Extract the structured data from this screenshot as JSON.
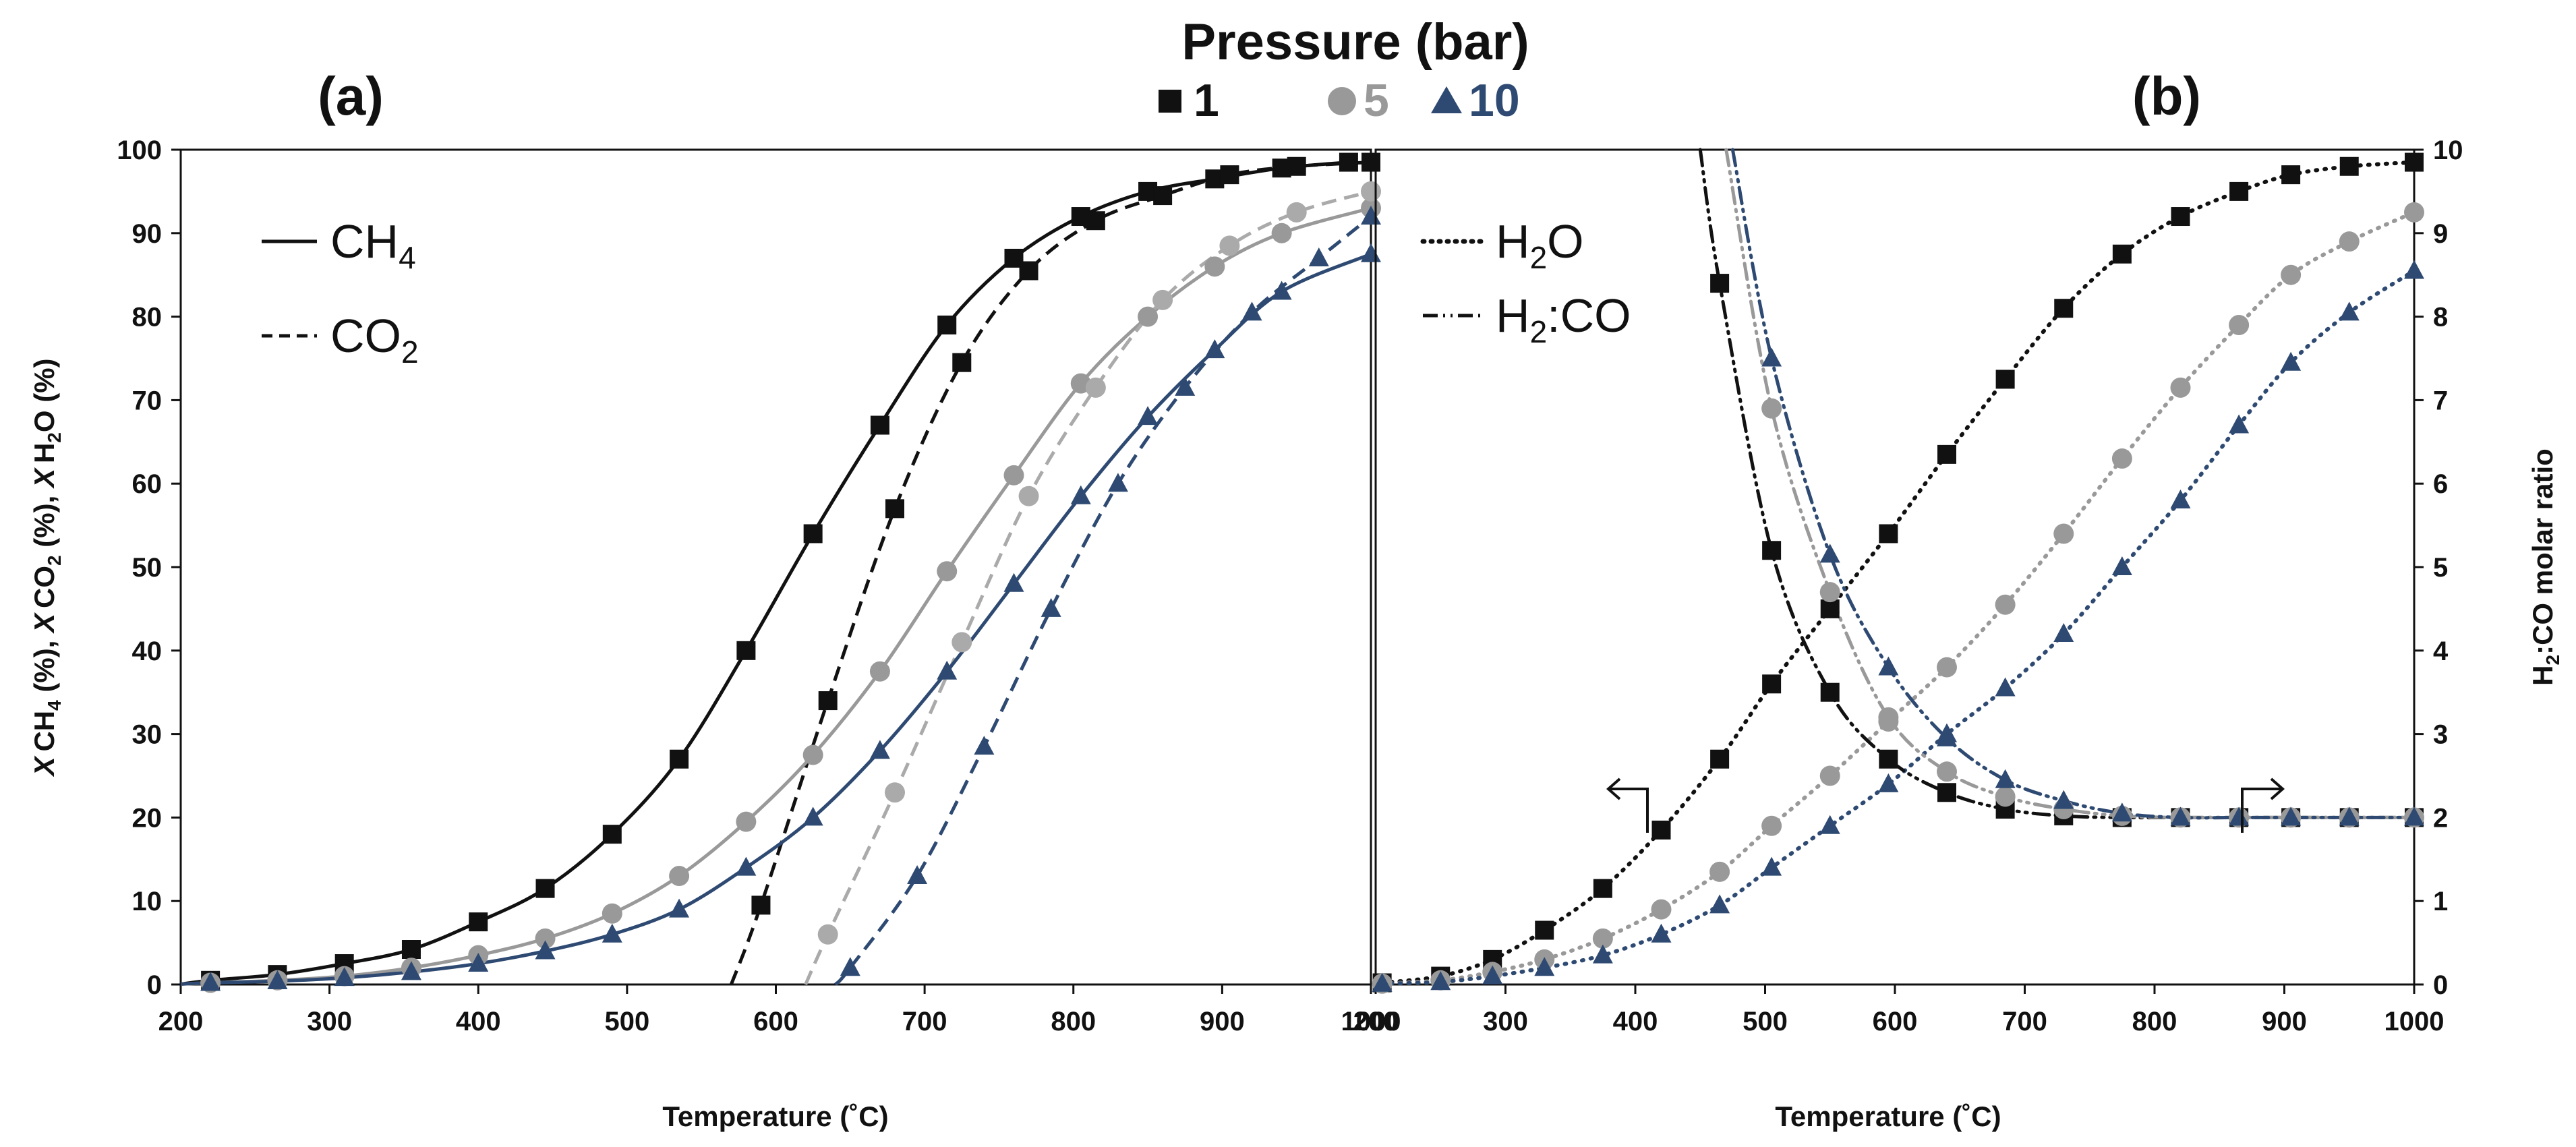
{
  "header": {
    "title": "Pressure (bar)",
    "legend": [
      {
        "marker": "square",
        "label": "1",
        "color": "#111111"
      },
      {
        "marker": "circle",
        "label": "5",
        "color": "#999999"
      },
      {
        "marker": "triangle",
        "label": "10",
        "color": "#2e4a72"
      }
    ]
  },
  "chart_data": [
    {
      "panel": "(a)",
      "type": "line",
      "xlabel": "Temperature (˚C)",
      "ylabel": "X CH4 (%), X CO2 (%), X H2O (%)",
      "ylabel_parts": {
        "v1": "X",
        "s1": "CH",
        "n1": "4",
        "s2": " (%), ",
        "v2": "X",
        "s3": "CO",
        "n2": "2",
        "s4": " (%), ",
        "v3": "X",
        "s5": "H",
        "n3": "2",
        "s6": "O (%)"
      },
      "xlim": [
        200,
        1000
      ],
      "ylim": [
        0,
        100
      ],
      "xticks": [
        "200",
        "300",
        "400",
        "500",
        "600",
        "700",
        "800",
        "900",
        "1000"
      ],
      "yticks": [
        "0",
        "10",
        "20",
        "30",
        "40",
        "50",
        "60",
        "70",
        "80",
        "90",
        "100"
      ],
      "legend": [
        {
          "label": "CH",
          "sub": "4",
          "style": "solid"
        },
        {
          "label": "CO",
          "sub": "2",
          "style": "dashed"
        }
      ],
      "x": [
        220,
        265,
        310,
        355,
        400,
        445,
        490,
        535,
        580,
        625,
        670,
        715,
        760,
        805,
        850,
        895,
        940,
        985
      ],
      "series": [
        {
          "name": "CH4 1 bar",
          "style": "solid",
          "color": "#111111",
          "marker": "square",
          "values": [
            0.5,
            1.2,
            2.5,
            4.2,
            7.5,
            11.5,
            18,
            27,
            40,
            54,
            67,
            79,
            87,
            92,
            95,
            96.5,
            97.8,
            98.5
          ]
        },
        {
          "name": "CO2 1 bar",
          "style": "dashed",
          "color": "#111111",
          "marker": "square",
          "start": 570,
          "x": [
            590,
            635,
            680,
            725,
            770,
            815,
            860,
            905,
            950,
            1000
          ],
          "values": [
            9.5,
            34,
            57,
            74.5,
            85.5,
            91.5,
            94.5,
            97,
            98,
            98.5
          ]
        },
        {
          "name": "CH4 5 bar",
          "style": "solid",
          "color": "#999999",
          "marker": "circle",
          "x": [
            220,
            265,
            310,
            355,
            400,
            445,
            490,
            535,
            580,
            625,
            670,
            715,
            760,
            805,
            850,
            895,
            940,
            1000
          ],
          "values": [
            0.2,
            0.5,
            1.0,
            2.0,
            3.5,
            5.5,
            8.5,
            13,
            19.5,
            27.5,
            37.5,
            49.5,
            61,
            72,
            80,
            86,
            90,
            93
          ]
        },
        {
          "name": "CO2 5 bar",
          "style": "dashed",
          "color": "#aaaaaa",
          "marker": "circle",
          "start": 620,
          "x": [
            635,
            680,
            725,
            770,
            815,
            860,
            905,
            950,
            1000
          ],
          "values": [
            6,
            23,
            41,
            58.5,
            71.5,
            82,
            88.5,
            92.5,
            95
          ]
        },
        {
          "name": "CH4 10 bar",
          "style": "solid",
          "color": "#2e4a72",
          "marker": "triangle",
          "x": [
            220,
            265,
            310,
            355,
            400,
            445,
            490,
            535,
            580,
            625,
            670,
            715,
            760,
            805,
            850,
            895,
            940,
            1000
          ],
          "values": [
            0.2,
            0.4,
            0.8,
            1.5,
            2.5,
            4,
            6,
            9,
            14,
            20,
            28,
            37.5,
            48,
            58.5,
            68,
            76,
            83,
            87.5
          ]
        },
        {
          "name": "CO2 10 bar",
          "style": "dashed",
          "color": "#2e4a72",
          "marker": "triangle",
          "start": 640,
          "x": [
            650,
            695,
            740,
            785,
            830,
            875,
            920,
            965,
            1000
          ],
          "values": [
            2,
            13,
            28.5,
            45,
            60,
            71.5,
            80.5,
            87,
            92
          ]
        }
      ]
    },
    {
      "panel": "(b)",
      "type": "line",
      "xlabel": "Temperature (˚C)",
      "ylabel_right": "H2:CO molar ratio",
      "ylabel_right_parts": {
        "a": "H",
        "sub": "2",
        "b": ":CO molar ratio"
      },
      "xlim": [
        200,
        1000
      ],
      "ylim_left": [
        0,
        100
      ],
      "ylim_right": [
        0,
        10
      ],
      "xticks": [
        "200",
        "300",
        "400",
        "500",
        "600",
        "700",
        "800",
        "900",
        "1000"
      ],
      "yticks_right": [
        "0",
        "1",
        "2",
        "3",
        "4",
        "5",
        "6",
        "7",
        "8",
        "9",
        "10"
      ],
      "legend": [
        {
          "label": "H",
          "sub": "2",
          "tail": "O",
          "style": "dotted"
        },
        {
          "label": "H",
          "sub": "2",
          "tail": ":CO",
          "style": "dashdotdot"
        }
      ],
      "h2o_x": [
        205,
        250,
        290,
        330,
        375,
        420,
        465,
        505,
        550,
        595,
        640,
        685,
        730,
        775,
        820,
        865,
        905,
        950,
        1000
      ],
      "series": [
        {
          "name": "H2O 1 bar",
          "axis": "left",
          "style": "dotted",
          "color": "#111111",
          "marker": "square",
          "values": [
            0.2,
            1,
            3,
            6.5,
            11.5,
            18.5,
            27,
            36,
            45,
            54,
            63.5,
            72.5,
            81,
            87.5,
            92,
            95,
            97,
            98,
            98.5
          ]
        },
        {
          "name": "H2O 5 bar",
          "axis": "left",
          "style": "dotted",
          "color": "#999999",
          "marker": "circle",
          "values": [
            0.1,
            0.5,
            1.5,
            3,
            5.5,
            9,
            13.5,
            19,
            25,
            31.5,
            38,
            45.5,
            54,
            63,
            71.5,
            79,
            85,
            89,
            92.5
          ]
        },
        {
          "name": "H2O 10 bar",
          "axis": "left",
          "style": "dotted",
          "color": "#2e4a72",
          "marker": "triangle",
          "values": [
            0.1,
            0.3,
            1,
            2,
            3.5,
            6,
            9.5,
            14,
            19,
            24,
            30,
            35.5,
            42,
            50,
            58,
            67,
            74.5,
            80.5,
            85.5
          ]
        },
        {
          "name": "H2:CO 1 bar",
          "axis": "right",
          "style": "dashdotdot",
          "color": "#111111",
          "marker": "square",
          "x": [
            450,
            465,
            505,
            550,
            595,
            640,
            685,
            730,
            775,
            820,
            865,
            905,
            950,
            1000
          ],
          "values": [
            10,
            8.4,
            5.2,
            3.5,
            2.7,
            2.3,
            2.1,
            2.02,
            2.0,
            2.0,
            2.0,
            2.0,
            2.0,
            2.0
          ]
        },
        {
          "name": "H2:CO 5 bar",
          "axis": "right",
          "style": "dashdotdot",
          "color": "#999999",
          "marker": "circle",
          "x": [
            470,
            505,
            550,
            595,
            640,
            685,
            730,
            775,
            820,
            865,
            905,
            950,
            1000
          ],
          "values": [
            10,
            6.9,
            4.7,
            3.2,
            2.55,
            2.25,
            2.1,
            2.02,
            2.0,
            2.0,
            2.0,
            2.0,
            2.0
          ]
        },
        {
          "name": "H2:CO 10 bar",
          "axis": "right",
          "style": "dashdotdot",
          "color": "#2e4a72",
          "marker": "triangle",
          "x": [
            475,
            505,
            550,
            595,
            640,
            685,
            730,
            775,
            820,
            865,
            905,
            950,
            1000
          ],
          "values": [
            10,
            7.5,
            5.15,
            3.8,
            2.95,
            2.45,
            2.2,
            2.05,
            2.0,
            2.0,
            2.0,
            2.0,
            2.0
          ]
        }
      ]
    }
  ]
}
